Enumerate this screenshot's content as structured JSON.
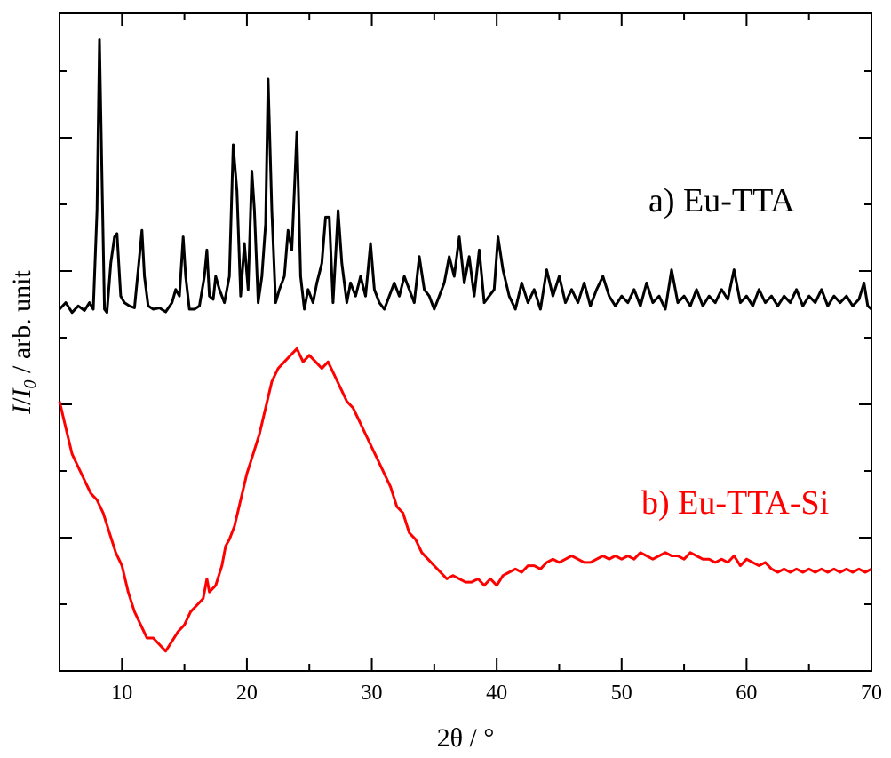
{
  "chart_data": {
    "type": "line",
    "xlabel": "2θ / °",
    "ylabel": {
      "italic_1": "I",
      "sep_1": "/",
      "italic_2": "I",
      "subscript": "0",
      "rest": " / arb. unit"
    },
    "xlim": [
      5,
      70
    ],
    "ylim": [
      0,
      100
    ],
    "x_ticks": [
      10,
      20,
      30,
      40,
      50,
      60,
      70
    ],
    "y_ticks_unlabeled": true,
    "grid": false,
    "series": [
      {
        "name": "a) Eu-TTA",
        "color": "#000000",
        "points": [
          [
            5,
            55.0
          ],
          [
            5.5,
            56.0
          ],
          [
            6,
            54.5
          ],
          [
            6.5,
            55.5
          ],
          [
            7,
            54.8
          ],
          [
            7.4,
            56.0
          ],
          [
            7.7,
            55.0
          ],
          [
            8.0,
            70
          ],
          [
            8.2,
            96
          ],
          [
            8.4,
            75
          ],
          [
            8.6,
            55
          ],
          [
            8.8,
            54.5
          ],
          [
            9.1,
            62
          ],
          [
            9.4,
            66
          ],
          [
            9.6,
            66.5
          ],
          [
            9.9,
            57
          ],
          [
            10.2,
            56
          ],
          [
            10.6,
            55.5
          ],
          [
            11.0,
            55.2
          ],
          [
            11.4,
            63
          ],
          [
            11.6,
            67
          ],
          [
            11.8,
            60
          ],
          [
            12.1,
            55.5
          ],
          [
            12.5,
            55
          ],
          [
            13.0,
            55.2
          ],
          [
            13.5,
            54.6
          ],
          [
            14.0,
            56
          ],
          [
            14.3,
            58
          ],
          [
            14.6,
            57
          ],
          [
            14.9,
            66
          ],
          [
            15.1,
            60
          ],
          [
            15.4,
            55
          ],
          [
            15.8,
            55
          ],
          [
            16.2,
            55.5
          ],
          [
            16.6,
            60
          ],
          [
            16.8,
            64
          ],
          [
            17.0,
            57
          ],
          [
            17.3,
            56.5
          ],
          [
            17.5,
            60
          ],
          [
            17.8,
            58
          ],
          [
            18.2,
            56
          ],
          [
            18.6,
            60
          ],
          [
            18.9,
            80
          ],
          [
            19.2,
            73
          ],
          [
            19.5,
            57
          ],
          [
            19.8,
            65
          ],
          [
            20.1,
            58
          ],
          [
            20.4,
            76
          ],
          [
            20.6,
            70
          ],
          [
            20.9,
            56
          ],
          [
            21.2,
            60
          ],
          [
            21.5,
            68
          ],
          [
            21.7,
            90
          ],
          [
            22.0,
            70
          ],
          [
            22.3,
            56
          ],
          [
            22.6,
            58
          ],
          [
            23.0,
            60
          ],
          [
            23.3,
            67
          ],
          [
            23.6,
            64
          ],
          [
            24.0,
            82
          ],
          [
            24.3,
            60
          ],
          [
            24.6,
            55
          ],
          [
            24.9,
            58
          ],
          [
            25.3,
            56
          ],
          [
            25.6,
            59
          ],
          [
            26.0,
            62
          ],
          [
            26.3,
            69
          ],
          [
            26.6,
            69
          ],
          [
            26.9,
            56
          ],
          [
            27.3,
            70
          ],
          [
            27.6,
            62
          ],
          [
            28.0,
            56
          ],
          [
            28.3,
            59
          ],
          [
            28.7,
            57
          ],
          [
            29.1,
            60
          ],
          [
            29.5,
            57
          ],
          [
            29.9,
            65
          ],
          [
            30.2,
            58
          ],
          [
            30.6,
            56
          ],
          [
            31.0,
            55
          ],
          [
            31.4,
            57
          ],
          [
            31.8,
            59
          ],
          [
            32.2,
            57
          ],
          [
            32.6,
            60
          ],
          [
            33.0,
            58
          ],
          [
            33.4,
            56
          ],
          [
            33.8,
            63
          ],
          [
            34.2,
            58
          ],
          [
            34.6,
            57
          ],
          [
            35.0,
            55
          ],
          [
            35.4,
            57
          ],
          [
            35.8,
            59
          ],
          [
            36.2,
            63
          ],
          [
            36.6,
            60
          ],
          [
            37.0,
            66
          ],
          [
            37.4,
            59
          ],
          [
            37.8,
            63
          ],
          [
            38.2,
            57
          ],
          [
            38.6,
            64
          ],
          [
            39.0,
            56
          ],
          [
            39.4,
            57
          ],
          [
            39.8,
            58
          ],
          [
            40.1,
            66
          ],
          [
            40.5,
            61
          ],
          [
            41.0,
            57
          ],
          [
            41.5,
            55
          ],
          [
            42,
            59
          ],
          [
            42.5,
            56
          ],
          [
            43,
            58
          ],
          [
            43.5,
            55
          ],
          [
            44,
            61
          ],
          [
            44.5,
            57
          ],
          [
            45,
            60
          ],
          [
            45.5,
            56
          ],
          [
            46,
            58
          ],
          [
            46.5,
            56
          ],
          [
            47,
            59
          ],
          [
            47.5,
            55.5
          ],
          [
            48,
            58
          ],
          [
            48.5,
            60
          ],
          [
            49,
            57
          ],
          [
            49.5,
            55.5
          ],
          [
            50,
            57
          ],
          [
            50.5,
            56
          ],
          [
            51,
            58
          ],
          [
            51.5,
            55.5
          ],
          [
            52,
            59
          ],
          [
            52.5,
            56
          ],
          [
            53,
            57
          ],
          [
            53.5,
            55
          ],
          [
            54,
            61
          ],
          [
            54.5,
            56
          ],
          [
            55,
            57
          ],
          [
            55.5,
            55.5
          ],
          [
            56,
            58
          ],
          [
            56.5,
            55.5
          ],
          [
            57,
            57
          ],
          [
            57.5,
            56
          ],
          [
            58,
            58
          ],
          [
            58.5,
            56.5
          ],
          [
            59,
            61
          ],
          [
            59.5,
            56
          ],
          [
            60,
            57
          ],
          [
            60.5,
            55.5
          ],
          [
            61,
            58
          ],
          [
            61.5,
            56
          ],
          [
            62,
            57
          ],
          [
            62.5,
            55.5
          ],
          [
            63,
            57
          ],
          [
            63.5,
            56
          ],
          [
            64,
            58
          ],
          [
            64.5,
            55.5
          ],
          [
            65,
            57
          ],
          [
            65.5,
            56
          ],
          [
            66,
            58
          ],
          [
            66.5,
            55.5
          ],
          [
            67,
            57
          ],
          [
            67.5,
            56
          ],
          [
            68,
            57
          ],
          [
            68.5,
            55.5
          ],
          [
            69,
            56.5
          ],
          [
            69.4,
            59
          ],
          [
            69.7,
            55.5
          ],
          [
            70,
            55
          ]
        ]
      },
      {
        "name": "b) Eu-TTA-Si",
        "color": "#ff0000",
        "points": [
          [
            5,
            41
          ],
          [
            5.5,
            37
          ],
          [
            6,
            33
          ],
          [
            6.5,
            31
          ],
          [
            7,
            29
          ],
          [
            7.5,
            27
          ],
          [
            8,
            26
          ],
          [
            8.5,
            24
          ],
          [
            9,
            21
          ],
          [
            9.5,
            18
          ],
          [
            10,
            16
          ],
          [
            10.5,
            12
          ],
          [
            11,
            9
          ],
          [
            11.5,
            7
          ],
          [
            12,
            5
          ],
          [
            12.5,
            5
          ],
          [
            13,
            4
          ],
          [
            13.5,
            3
          ],
          [
            14,
            4.5
          ],
          [
            14.5,
            6
          ],
          [
            15,
            7
          ],
          [
            15.5,
            9
          ],
          [
            16,
            10
          ],
          [
            16.5,
            11
          ],
          [
            16.8,
            14
          ],
          [
            17,
            12
          ],
          [
            17.5,
            13
          ],
          [
            18,
            16
          ],
          [
            18.3,
            19
          ],
          [
            18.6,
            20
          ],
          [
            19,
            22
          ],
          [
            19.5,
            26
          ],
          [
            20,
            30
          ],
          [
            20.5,
            33
          ],
          [
            21,
            36
          ],
          [
            21.5,
            40
          ],
          [
            22,
            44
          ],
          [
            22.5,
            46
          ],
          [
            23,
            47
          ],
          [
            23.5,
            48
          ],
          [
            24,
            49
          ],
          [
            24.5,
            47
          ],
          [
            25,
            48
          ],
          [
            25.5,
            47
          ],
          [
            26,
            46
          ],
          [
            26.5,
            47
          ],
          [
            27,
            45
          ],
          [
            27.5,
            43
          ],
          [
            28,
            41
          ],
          [
            28.5,
            40
          ],
          [
            29,
            38
          ],
          [
            29.5,
            36
          ],
          [
            30,
            34
          ],
          [
            30.5,
            32
          ],
          [
            31,
            30
          ],
          [
            31.5,
            28
          ],
          [
            32,
            25
          ],
          [
            32.5,
            24
          ],
          [
            33,
            21
          ],
          [
            33.5,
            20
          ],
          [
            34,
            18
          ],
          [
            34.5,
            17
          ],
          [
            35,
            16
          ],
          [
            35.5,
            15
          ],
          [
            36,
            14
          ],
          [
            36.5,
            14.5
          ],
          [
            37,
            14
          ],
          [
            37.5,
            13.5
          ],
          [
            38,
            13.5
          ],
          [
            38.5,
            14
          ],
          [
            39,
            13
          ],
          [
            39.5,
            14
          ],
          [
            40,
            13
          ],
          [
            40.5,
            14.5
          ],
          [
            41,
            15
          ],
          [
            41.5,
            15.5
          ],
          [
            42,
            15
          ],
          [
            42.5,
            16
          ],
          [
            43,
            16
          ],
          [
            43.5,
            15.5
          ],
          [
            44,
            16.5
          ],
          [
            44.5,
            17
          ],
          [
            45,
            16.5
          ],
          [
            45.5,
            17
          ],
          [
            46,
            17.5
          ],
          [
            46.5,
            17
          ],
          [
            47,
            16.5
          ],
          [
            47.5,
            16.5
          ],
          [
            48,
            17
          ],
          [
            48.5,
            17.5
          ],
          [
            49,
            17
          ],
          [
            49.5,
            17.5
          ],
          [
            50,
            17
          ],
          [
            50.5,
            17.5
          ],
          [
            51,
            17
          ],
          [
            51.5,
            18
          ],
          [
            52,
            17.5
          ],
          [
            52.5,
            17
          ],
          [
            53,
            17.5
          ],
          [
            53.5,
            18
          ],
          [
            54,
            17.5
          ],
          [
            54.5,
            17.5
          ],
          [
            55,
            17
          ],
          [
            55.5,
            18
          ],
          [
            56,
            17.5
          ],
          [
            56.5,
            17
          ],
          [
            57,
            17
          ],
          [
            57.5,
            16.5
          ],
          [
            58,
            17
          ],
          [
            58.5,
            16.5
          ],
          [
            59,
            17.5
          ],
          [
            59.5,
            16
          ],
          [
            60,
            17
          ],
          [
            60.5,
            16.5
          ],
          [
            61,
            16
          ],
          [
            61.5,
            16.5
          ],
          [
            62,
            15.5
          ],
          [
            62.5,
            15
          ],
          [
            63,
            15.5
          ],
          [
            63.5,
            15
          ],
          [
            64,
            15.5
          ],
          [
            64.5,
            15
          ],
          [
            65,
            15.5
          ],
          [
            65.5,
            15
          ],
          [
            66,
            15.5
          ],
          [
            66.5,
            15
          ],
          [
            67,
            15.5
          ],
          [
            67.5,
            15
          ],
          [
            68,
            15.5
          ],
          [
            68.5,
            15
          ],
          [
            69,
            15.5
          ],
          [
            69.5,
            15
          ],
          [
            70,
            15.5
          ]
        ]
      }
    ]
  }
}
